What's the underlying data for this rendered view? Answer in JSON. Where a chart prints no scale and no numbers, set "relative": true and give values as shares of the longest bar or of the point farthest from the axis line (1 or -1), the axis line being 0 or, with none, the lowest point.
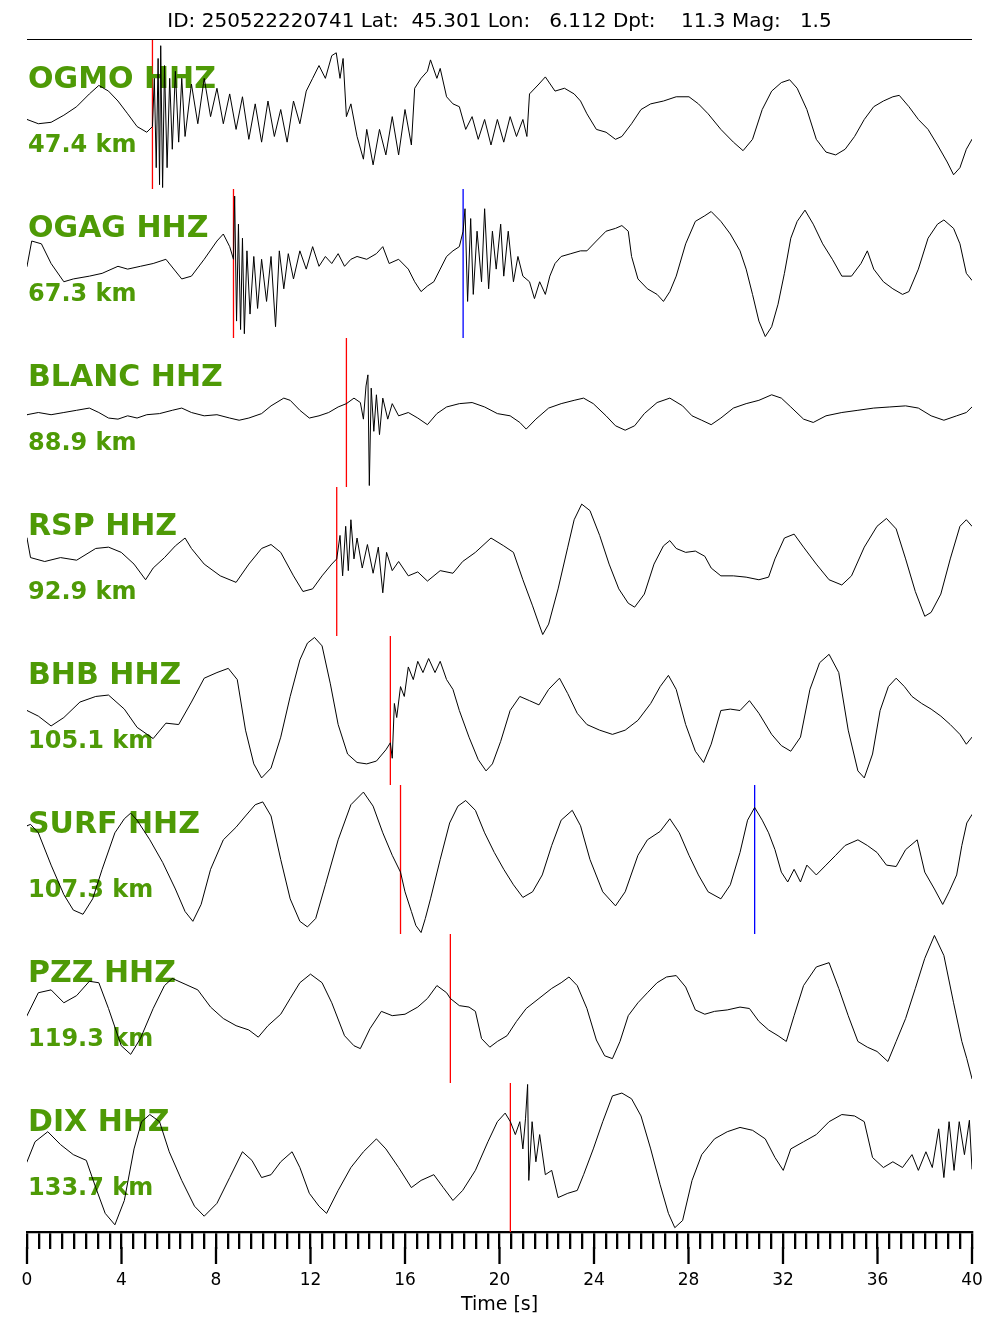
{
  "chart_data": [
    {
      "type": "line",
      "title": "ID: 250522220741 Lat:  45.301 Lon:   6.112 Dpt:    11.3 Mag:   1.5",
      "annotations": [
        "OGMO HHZ",
        "47.4 km"
      ],
      "relative": true,
      "marker": "none",
      "tick_labels": false,
      "xlim": [
        0,
        40
      ],
      "color": "#000000",
      "ref_lines": [
        {
          "axis": "x",
          "value": 5.31,
          "color": "#ff0000"
        }
      ],
      "x": [
        0,
        0.48,
        1.02,
        1.56,
        2.1,
        2.64,
        3.04,
        3.45,
        3.85,
        4.26,
        4.66,
        5.07,
        5.31,
        5.39,
        5.47,
        5.55,
        5.61,
        5.66,
        5.74,
        5.82,
        5.93,
        6.04,
        6.15,
        6.28,
        6.42,
        6.55,
        6.69,
        6.96,
        7.23,
        7.5,
        7.77,
        8.04,
        8.31,
        8.58,
        8.85,
        9.12,
        9.39,
        9.66,
        9.93,
        10.2,
        10.47,
        10.74,
        11.01,
        11.28,
        11.55,
        11.82,
        12.09,
        12.36,
        12.63,
        12.9,
        13.09,
        13.25,
        13.38,
        13.52,
        13.71,
        13.97,
        14.24,
        14.38,
        14.65,
        14.92,
        15.19,
        15.46,
        15.73,
        16,
        16.27,
        16.41,
        16.68,
        16.95,
        17.08,
        17.35,
        17.49,
        17.76,
        18.03,
        18.3,
        18.57,
        18.84,
        19.1,
        19.37,
        19.64,
        19.91,
        20.18,
        20.45,
        20.72,
        20.99,
        21.16,
        21.27,
        21.67,
        21.94,
        22.35,
        22.75,
        23.16,
        23.43,
        23.7,
        24.1,
        24.51,
        24.91,
        25.18,
        25.59,
        25.99,
        26.4,
        26.94,
        27.48,
        28.02,
        28.42,
        28.83,
        29.37,
        29.9,
        30.31,
        30.71,
        31.12,
        31.52,
        31.93,
        32.28,
        32.6,
        33.01,
        33.41,
        33.82,
        34.23,
        34.63,
        35.03,
        35.44,
        35.84,
        36.25,
        36.65,
        36.92,
        37.33,
        37.73,
        38.14,
        38.54,
        38.95,
        39.22,
        39.49,
        39.76,
        40
      ],
      "values": [
        0.48,
        0.45,
        0.46,
        0.51,
        0.57,
        0.66,
        0.72,
        0.68,
        0.61,
        0.52,
        0.43,
        0.39,
        0.43,
        0.77,
        0.14,
        0.91,
        0.02,
        1,
        0,
        0.86,
        0.14,
        0.77,
        0.27,
        0.82,
        0.32,
        0.77,
        0.36,
        0.73,
        0.45,
        0.77,
        0.5,
        0.7,
        0.45,
        0.66,
        0.41,
        0.64,
        0.34,
        0.59,
        0.32,
        0.61,
        0.36,
        0.55,
        0.32,
        0.61,
        0.45,
        0.68,
        0.77,
        0.86,
        0.77,
        0.93,
        0.95,
        0.77,
        0.91,
        0.5,
        0.59,
        0.36,
        0.2,
        0.41,
        0.16,
        0.41,
        0.23,
        0.5,
        0.23,
        0.55,
        0.3,
        0.7,
        0.77,
        0.82,
        0.9,
        0.77,
        0.84,
        0.64,
        0.59,
        0.57,
        0.41,
        0.5,
        0.34,
        0.48,
        0.3,
        0.48,
        0.32,
        0.5,
        0.36,
        0.48,
        0.36,
        0.66,
        0.73,
        0.78,
        0.68,
        0.7,
        0.66,
        0.61,
        0.52,
        0.41,
        0.39,
        0.34,
        0.36,
        0.45,
        0.55,
        0.59,
        0.61,
        0.64,
        0.64,
        0.59,
        0.52,
        0.41,
        0.32,
        0.26,
        0.34,
        0.55,
        0.68,
        0.74,
        0.76,
        0.7,
        0.55,
        0.34,
        0.25,
        0.23,
        0.27,
        0.36,
        0.48,
        0.57,
        0.61,
        0.64,
        0.65,
        0.57,
        0.48,
        0.41,
        0.3,
        0.18,
        0.09,
        0.14,
        0.27,
        0.34
      ]
    },
    {
      "type": "line",
      "annotations": [
        "OGAG HHZ",
        "67.3 km"
      ],
      "relative": true,
      "marker": "none",
      "tick_labels": false,
      "xlim": [
        0,
        40
      ],
      "color": "#000000",
      "ref_lines": [
        {
          "axis": "x",
          "value": 8.74,
          "color": "#ff0000"
        },
        {
          "axis": "x",
          "value": 18.46,
          "color": "#0000ff"
        }
      ],
      "x": [
        0,
        0.2,
        0.61,
        1.02,
        1.56,
        1.96,
        2.64,
        3.18,
        3.85,
        4.26,
        4.8,
        5.34,
        5.88,
        6.55,
        6.96,
        7.5,
        8.04,
        8.31,
        8.58,
        8.74,
        8.79,
        8.87,
        8.95,
        9.04,
        9.12,
        9.2,
        9.31,
        9.44,
        9.6,
        9.76,
        9.93,
        10.14,
        10.33,
        10.52,
        10.68,
        10.87,
        11.06,
        11.28,
        11.55,
        11.82,
        12.09,
        12.36,
        12.63,
        12.9,
        13.17,
        13.44,
        13.71,
        13.97,
        14.38,
        14.79,
        15.06,
        15.33,
        15.73,
        16.14,
        16.41,
        16.68,
        16.95,
        17.22,
        17.49,
        17.76,
        18.03,
        18.3,
        18.46,
        18.54,
        18.65,
        18.78,
        18.89,
        19.05,
        19.24,
        19.37,
        19.54,
        19.7,
        19.86,
        20.05,
        20.18,
        20.37,
        20.59,
        20.78,
        20.99,
        21.27,
        21.48,
        21.7,
        21.94,
        22.13,
        22.35,
        22.61,
        23.02,
        23.43,
        23.7,
        24.1,
        24.51,
        24.91,
        25.18,
        25.45,
        25.59,
        25.86,
        26.26,
        26.67,
        26.94,
        27.21,
        27.48,
        27.88,
        28.29,
        28.69,
        28.96,
        29.37,
        29.77,
        30.18,
        30.44,
        30.71,
        30.98,
        31.25,
        31.52,
        31.79,
        32.06,
        32.33,
        32.6,
        32.93,
        33.28,
        33.68,
        34.09,
        34.49,
        34.9,
        35.3,
        35.57,
        35.84,
        36.25,
        36.65,
        37.06,
        37.33,
        37.73,
        38.14,
        38.54,
        38.81,
        39.22,
        39.49,
        39.76,
        40
      ],
      "values": [
        0.5,
        0.68,
        0.66,
        0.52,
        0.39,
        0.41,
        0.43,
        0.45,
        0.5,
        0.48,
        0.5,
        0.52,
        0.55,
        0.41,
        0.43,
        0.55,
        0.68,
        0.73,
        0.64,
        0.55,
        1,
        0.11,
        0.8,
        0.05,
        0.7,
        0.02,
        0.61,
        0.16,
        0.57,
        0.2,
        0.55,
        0.25,
        0.57,
        0.07,
        0.61,
        0.34,
        0.59,
        0.41,
        0.61,
        0.48,
        0.64,
        0.5,
        0.57,
        0.52,
        0.59,
        0.5,
        0.55,
        0.57,
        0.55,
        0.59,
        0.64,
        0.52,
        0.55,
        0.48,
        0.39,
        0.32,
        0.36,
        0.39,
        0.48,
        0.57,
        0.61,
        0.64,
        0.75,
        0.91,
        0.25,
        0.84,
        0.3,
        0.75,
        0.39,
        0.91,
        0.34,
        0.75,
        0.48,
        0.8,
        0.43,
        0.75,
        0.39,
        0.57,
        0.43,
        0.39,
        0.27,
        0.39,
        0.3,
        0.43,
        0.52,
        0.57,
        0.59,
        0.61,
        0.61,
        0.68,
        0.75,
        0.77,
        0.79,
        0.75,
        0.57,
        0.41,
        0.34,
        0.3,
        0.25,
        0.32,
        0.43,
        0.66,
        0.82,
        0.86,
        0.89,
        0.82,
        0.73,
        0.61,
        0.48,
        0.3,
        0.11,
        0,
        0.07,
        0.23,
        0.45,
        0.7,
        0.82,
        0.9,
        0.8,
        0.66,
        0.55,
        0.43,
        0.43,
        0.52,
        0.61,
        0.48,
        0.39,
        0.34,
        0.3,
        0.32,
        0.48,
        0.7,
        0.8,
        0.83,
        0.77,
        0.66,
        0.45,
        0.4
      ]
    },
    {
      "type": "line",
      "annotations": [
        "BLANC HHZ",
        "88.9 km"
      ],
      "relative": true,
      "marker": "none",
      "tick_labels": false,
      "xlim": [
        0,
        40
      ],
      "color": "#000000",
      "ref_lines": [
        {
          "axis": "x",
          "value": 13.52,
          "color": "#ff0000"
        }
      ],
      "x": [
        0,
        0.48,
        1.02,
        1.56,
        2.1,
        2.64,
        3.04,
        3.45,
        3.85,
        4.26,
        4.66,
        5.07,
        5.61,
        6.15,
        6.55,
        6.96,
        7.5,
        8.04,
        8.58,
        8.98,
        9.39,
        9.93,
        10.33,
        10.87,
        11.14,
        11.55,
        11.95,
        12.36,
        12.77,
        13.17,
        13.52,
        13.84,
        14.11,
        14.24,
        14.35,
        14.43,
        14.49,
        14.57,
        14.68,
        14.79,
        14.92,
        15.06,
        15.27,
        15.46,
        15.73,
        16.14,
        16.54,
        16.95,
        17.35,
        17.76,
        18.3,
        18.84,
        19.37,
        19.91,
        20.45,
        20.86,
        21.13,
        21.54,
        22.08,
        22.61,
        23.16,
        23.56,
        23.97,
        24.51,
        24.91,
        25.32,
        25.72,
        26.13,
        26.67,
        27.21,
        27.75,
        28.15,
        28.56,
        28.96,
        29.37,
        29.9,
        30.44,
        30.98,
        31.52,
        31.93,
        32.33,
        32.87,
        33.28,
        33.82,
        34.49,
        35.17,
        35.84,
        36.52,
        37.19,
        37.73,
        38.27,
        38.81,
        39.35,
        39.76,
        40
      ],
      "values": [
        0.64,
        0.66,
        0.64,
        0.66,
        0.68,
        0.7,
        0.66,
        0.61,
        0.6,
        0.63,
        0.61,
        0.64,
        0.65,
        0.68,
        0.7,
        0.66,
        0.63,
        0.64,
        0.61,
        0.59,
        0.61,
        0.65,
        0.72,
        0.79,
        0.77,
        0.68,
        0.61,
        0.63,
        0.66,
        0.71,
        0.74,
        0.79,
        0.75,
        0.6,
        0.9,
        1,
        0,
        0.88,
        0.49,
        0.82,
        0.46,
        0.79,
        0.6,
        0.74,
        0.63,
        0.66,
        0.61,
        0.55,
        0.65,
        0.71,
        0.74,
        0.75,
        0.71,
        0.65,
        0.63,
        0.57,
        0.51,
        0.6,
        0.7,
        0.74,
        0.77,
        0.79,
        0.74,
        0.63,
        0.54,
        0.5,
        0.54,
        0.65,
        0.75,
        0.79,
        0.72,
        0.63,
        0.59,
        0.55,
        0.61,
        0.7,
        0.74,
        0.77,
        0.82,
        0.79,
        0.71,
        0.6,
        0.57,
        0.63,
        0.66,
        0.68,
        0.7,
        0.71,
        0.72,
        0.7,
        0.63,
        0.59,
        0.63,
        0.66,
        0.71
      ]
    },
    {
      "type": "line",
      "annotations": [
        "RSP HHZ",
        "92.9 km"
      ],
      "relative": true,
      "marker": "none",
      "tick_labels": false,
      "xlim": [
        0,
        40
      ],
      "color": "#000000",
      "ref_lines": [
        {
          "axis": "x",
          "value": 13.11,
          "color": "#ff0000"
        }
      ],
      "x": [
        0,
        0.15,
        0.75,
        1.42,
        2.1,
        2.91,
        3.45,
        3.99,
        4.53,
        5.02,
        5.34,
        5.82,
        6.28,
        6.69,
        6.96,
        7.5,
        8.18,
        8.85,
        9.39,
        9.93,
        10.33,
        10.74,
        11.28,
        11.68,
        12.09,
        12.49,
        12.9,
        13.11,
        13.25,
        13.36,
        13.49,
        13.6,
        13.71,
        13.84,
        13.97,
        14.19,
        14.41,
        14.65,
        14.87,
        15.06,
        15.22,
        15.46,
        15.73,
        16.14,
        16.54,
        16.95,
        17.49,
        18.03,
        18.44,
        18.98,
        19.64,
        20.18,
        20.59,
        20.99,
        21.4,
        21.67,
        21.83,
        22.08,
        22.48,
        22.89,
        23.16,
        23.48,
        23.83,
        24.24,
        24.64,
        25.05,
        25.45,
        25.72,
        26.13,
        26.54,
        26.94,
        27.21,
        27.48,
        27.88,
        28.29,
        28.69,
        28.96,
        29.37,
        29.9,
        30.44,
        30.98,
        31.39,
        31.66,
        32.06,
        32.47,
        32.87,
        33.41,
        33.95,
        34.49,
        34.9,
        35.44,
        35.98,
        36.38,
        36.79,
        37.19,
        37.6,
        38,
        38.27,
        38.68,
        39.08,
        39.49,
        39.76,
        40
      ],
      "values": [
        0.74,
        0.59,
        0.56,
        0.59,
        0.57,
        0.66,
        0.67,
        0.63,
        0.54,
        0.42,
        0.51,
        0.59,
        0.68,
        0.74,
        0.66,
        0.54,
        0.45,
        0.4,
        0.54,
        0.66,
        0.69,
        0.63,
        0.45,
        0.33,
        0.35,
        0.45,
        0.54,
        0.58,
        0.76,
        0.45,
        0.83,
        0.49,
        0.88,
        0.58,
        0.74,
        0.51,
        0.69,
        0.47,
        0.67,
        0.32,
        0.63,
        0.49,
        0.56,
        0.45,
        0.48,
        0.41,
        0.49,
        0.47,
        0.56,
        0.63,
        0.74,
        0.68,
        0.63,
        0.42,
        0.22,
        0.08,
        0,
        0.08,
        0.35,
        0.67,
        0.88,
        1,
        0.95,
        0.76,
        0.54,
        0.35,
        0.24,
        0.21,
        0.31,
        0.54,
        0.68,
        0.72,
        0.66,
        0.63,
        0.64,
        0.6,
        0.51,
        0.45,
        0.45,
        0.44,
        0.42,
        0.44,
        0.58,
        0.74,
        0.77,
        0.67,
        0.54,
        0.42,
        0.38,
        0.45,
        0.67,
        0.83,
        0.89,
        0.81,
        0.58,
        0.33,
        0.14,
        0.17,
        0.31,
        0.58,
        0.83,
        0.88,
        0.83
      ]
    },
    {
      "type": "line",
      "annotations": [
        "BHB HHZ",
        "105.1 km"
      ],
      "relative": true,
      "marker": "none",
      "tick_labels": false,
      "xlim": [
        0,
        40
      ],
      "color": "#000000",
      "ref_lines": [
        {
          "axis": "x",
          "value": 15.38,
          "color": "#ff0000"
        }
      ],
      "x": [
        0,
        0.48,
        1.02,
        1.56,
        2.24,
        2.91,
        3.45,
        4.12,
        4.66,
        5.34,
        5.88,
        6.42,
        6.96,
        7.5,
        8.04,
        8.52,
        8.9,
        9.25,
        9.6,
        9.93,
        10.33,
        10.74,
        11.14,
        11.55,
        11.87,
        12.17,
        12.49,
        12.84,
        13.17,
        13.57,
        13.97,
        14.38,
        14.79,
        15.19,
        15.38,
        15.46,
        15.55,
        15.65,
        15.81,
        15.97,
        16.14,
        16.35,
        16.54,
        16.76,
        17,
        17.27,
        17.49,
        17.76,
        18.03,
        18.3,
        18.71,
        19.1,
        19.43,
        19.7,
        20.05,
        20.45,
        20.86,
        21.27,
        21.67,
        22.08,
        22.54,
        22.89,
        23.29,
        23.7,
        24.24,
        24.78,
        25.32,
        25.86,
        26.4,
        26.8,
        27.15,
        27.48,
        27.88,
        28.29,
        28.64,
        28.96,
        29.37,
        29.77,
        30.18,
        30.58,
        30.98,
        31.52,
        31.93,
        32.33,
        32.74,
        33.14,
        33.55,
        33.95,
        34.36,
        34.76,
        35.17,
        35.44,
        35.79,
        36.11,
        36.46,
        36.79,
        37.14,
        37.46,
        37.87,
        38.27,
        38.68,
        39.08,
        39.49,
        39.76,
        40
      ],
      "values": [
        0.48,
        0.44,
        0.37,
        0.43,
        0.54,
        0.58,
        0.59,
        0.49,
        0.36,
        0.28,
        0.39,
        0.38,
        0.54,
        0.71,
        0.75,
        0.78,
        0.7,
        0.34,
        0.1,
        0,
        0.07,
        0.29,
        0.58,
        0.84,
        0.96,
        1,
        0.94,
        0.67,
        0.38,
        0.17,
        0.11,
        0.1,
        0.12,
        0.2,
        0.25,
        0.14,
        0.53,
        0.43,
        0.65,
        0.58,
        0.79,
        0.7,
        0.83,
        0.75,
        0.85,
        0.75,
        0.83,
        0.7,
        0.63,
        0.48,
        0.29,
        0.13,
        0.05,
        0.1,
        0.26,
        0.48,
        0.58,
        0.55,
        0.52,
        0.63,
        0.71,
        0.6,
        0.46,
        0.38,
        0.34,
        0.31,
        0.34,
        0.41,
        0.53,
        0.65,
        0.73,
        0.63,
        0.38,
        0.19,
        0.11,
        0.24,
        0.48,
        0.49,
        0.48,
        0.55,
        0.46,
        0.31,
        0.23,
        0.19,
        0.29,
        0.63,
        0.82,
        0.88,
        0.75,
        0.34,
        0.05,
        0,
        0.17,
        0.48,
        0.65,
        0.71,
        0.65,
        0.58,
        0.53,
        0.49,
        0.44,
        0.38,
        0.31,
        0.24,
        0.29
      ]
    },
    {
      "type": "line",
      "annotations": [
        "SURF HHZ",
        "107.3 km"
      ],
      "relative": true,
      "marker": "none",
      "tick_labels": false,
      "xlim": [
        0,
        40
      ],
      "color": "#000000",
      "ref_lines": [
        {
          "axis": "x",
          "value": 15.81,
          "color": "#ff0000"
        },
        {
          "axis": "x",
          "value": 30.8,
          "color": "#0000ff"
        }
      ],
      "x": [
        0,
        0.15,
        0.48,
        1.02,
        1.56,
        1.96,
        2.37,
        2.78,
        3.18,
        3.72,
        4.12,
        4.39,
        4.66,
        5.2,
        5.74,
        6.28,
        6.69,
        7.02,
        7.37,
        7.77,
        8.31,
        8.85,
        9.25,
        9.66,
        9.98,
        10.33,
        10.74,
        11.14,
        11.55,
        11.87,
        12.22,
        12.63,
        13.17,
        13.71,
        14.24,
        14.65,
        15.06,
        15.46,
        15.81,
        16,
        16.27,
        16.46,
        16.68,
        16.86,
        17.08,
        17.49,
        17.89,
        18.24,
        18.57,
        18.98,
        19.37,
        19.78,
        20.18,
        20.59,
        20.99,
        21.4,
        21.81,
        22.21,
        22.61,
        23.08,
        23.43,
        23.83,
        24.37,
        24.91,
        25.32,
        25.86,
        26.26,
        26.8,
        27.21,
        27.61,
        28.02,
        28.42,
        28.83,
        29.37,
        29.77,
        30.18,
        30.5,
        30.8,
        31.12,
        31.39,
        31.66,
        31.93,
        32.2,
        32.47,
        32.74,
        33.01,
        33.41,
        33.82,
        34.23,
        34.63,
        35.17,
        35.57,
        35.98,
        36.38,
        36.79,
        37.19,
        37.68,
        38,
        38.41,
        38.76,
        39.03,
        39.35,
        39.57,
        39.78,
        40
      ],
      "values": [
        0.76,
        0.77,
        0.71,
        0.48,
        0.27,
        0.16,
        0.13,
        0.24,
        0.45,
        0.71,
        0.81,
        0.85,
        0.8,
        0.66,
        0.5,
        0.31,
        0.15,
        0.08,
        0.2,
        0.45,
        0.66,
        0.75,
        0.83,
        0.91,
        0.93,
        0.83,
        0.52,
        0.24,
        0.08,
        0.04,
        0.1,
        0.34,
        0.66,
        0.91,
        1,
        0.9,
        0.71,
        0.55,
        0.43,
        0.29,
        0.15,
        0.05,
        0,
        0.1,
        0.24,
        0.52,
        0.78,
        0.9,
        0.94,
        0.87,
        0.71,
        0.57,
        0.45,
        0.34,
        0.25,
        0.29,
        0.41,
        0.62,
        0.8,
        0.87,
        0.76,
        0.52,
        0.29,
        0.19,
        0.29,
        0.55,
        0.66,
        0.72,
        0.81,
        0.71,
        0.55,
        0.41,
        0.29,
        0.24,
        0.34,
        0.57,
        0.8,
        0.89,
        0.8,
        0.71,
        0.59,
        0.43,
        0.36,
        0.45,
        0.36,
        0.48,
        0.41,
        0.48,
        0.55,
        0.62,
        0.66,
        0.62,
        0.57,
        0.48,
        0.47,
        0.59,
        0.66,
        0.43,
        0.31,
        0.2,
        0.29,
        0.41,
        0.62,
        0.78,
        0.84
      ]
    },
    {
      "type": "line",
      "annotations": [
        "PZZ HHZ",
        "119.3 km"
      ],
      "relative": true,
      "marker": "none",
      "tick_labels": false,
      "xlim": [
        0,
        40
      ],
      "color": "#000000",
      "ref_lines": [
        {
          "axis": "x",
          "value": 17.92,
          "color": "#ff0000"
        }
      ],
      "x": [
        0,
        0.48,
        1.02,
        1.56,
        2.1,
        2.64,
        3.04,
        3.45,
        3.99,
        4.39,
        4.8,
        5.34,
        5.82,
        6.15,
        6.69,
        7.23,
        7.77,
        8.31,
        8.85,
        9.39,
        9.79,
        10.2,
        10.74,
        11.14,
        11.55,
        12,
        12.49,
        12.9,
        13.44,
        13.84,
        14.11,
        14.52,
        15,
        15.46,
        16,
        16.54,
        16.95,
        17.35,
        17.76,
        17.92,
        18.3,
        18.71,
        18.98,
        19.24,
        19.59,
        19.91,
        20.32,
        20.72,
        21.13,
        21.67,
        22.21,
        22.61,
        22.94,
        23.29,
        23.7,
        24.1,
        24.45,
        24.78,
        25.1,
        25.45,
        25.86,
        26.26,
        26.67,
        27.07,
        27.48,
        27.88,
        28.29,
        28.69,
        29.1,
        29.64,
        30.18,
        30.58,
        30.98,
        31.39,
        31.79,
        32.14,
        32.47,
        32.87,
        33.41,
        33.95,
        34.36,
        34.76,
        35.17,
        35.57,
        35.98,
        36.44,
        36.79,
        37.19,
        37.6,
        38,
        38.41,
        38.81,
        39.22,
        39.57,
        39.78,
        40
      ],
      "values": [
        0.44,
        0.6,
        0.62,
        0.53,
        0.58,
        0.68,
        0.67,
        0.49,
        0.23,
        0.17,
        0.28,
        0.49,
        0.65,
        0.7,
        0.66,
        0.62,
        0.5,
        0.42,
        0.37,
        0.34,
        0.29,
        0.37,
        0.45,
        0.56,
        0.67,
        0.73,
        0.67,
        0.53,
        0.3,
        0.23,
        0.21,
        0.35,
        0.47,
        0.44,
        0.45,
        0.5,
        0.56,
        0.65,
        0.6,
        0.56,
        0.51,
        0.5,
        0.47,
        0.28,
        0.22,
        0.26,
        0.3,
        0.4,
        0.49,
        0.56,
        0.63,
        0.67,
        0.71,
        0.65,
        0.49,
        0.27,
        0.16,
        0.14,
        0.26,
        0.44,
        0.53,
        0.6,
        0.67,
        0.71,
        0.72,
        0.64,
        0.48,
        0.45,
        0.47,
        0.48,
        0.5,
        0.49,
        0.4,
        0.34,
        0.3,
        0.26,
        0.44,
        0.65,
        0.78,
        0.81,
        0.63,
        0.44,
        0.26,
        0.22,
        0.19,
        0.12,
        0.26,
        0.42,
        0.63,
        0.84,
        1,
        0.86,
        0.53,
        0.26,
        0.14,
        0
      ]
    },
    {
      "type": "line",
      "annotations": [
        "DIX HHZ",
        "133.7 km"
      ],
      "xlabel": "Time [s]",
      "relative": true,
      "marker": "none",
      "tick_labels": "x",
      "xlim": [
        0,
        40
      ],
      "color": "#000000",
      "xticks": [
        0,
        {
          "value": 0.5,
          "label": null
        },
        {
          "value": 1,
          "label": null
        },
        {
          "value": 1.5,
          "label": null
        },
        {
          "value": 2,
          "label": null
        },
        {
          "value": 2.5,
          "label": null
        },
        {
          "value": 3,
          "label": null
        },
        {
          "value": 3.5,
          "label": null
        },
        4,
        {
          "value": 4.5,
          "label": null
        },
        {
          "value": 5,
          "label": null
        },
        {
          "value": 5.5,
          "label": null
        },
        {
          "value": 6,
          "label": null
        },
        {
          "value": 6.5,
          "label": null
        },
        {
          "value": 7,
          "label": null
        },
        {
          "value": 7.5,
          "label": null
        },
        8,
        {
          "value": 8.5,
          "label": null
        },
        {
          "value": 9,
          "label": null
        },
        {
          "value": 9.5,
          "label": null
        },
        {
          "value": 10,
          "label": null
        },
        {
          "value": 10.5,
          "label": null
        },
        {
          "value": 11,
          "label": null
        },
        {
          "value": 11.5,
          "label": null
        },
        12,
        {
          "value": 12.5,
          "label": null
        },
        {
          "value": 13,
          "label": null
        },
        {
          "value": 13.5,
          "label": null
        },
        {
          "value": 14,
          "label": null
        },
        {
          "value": 14.5,
          "label": null
        },
        {
          "value": 15,
          "label": null
        },
        {
          "value": 15.5,
          "label": null
        },
        16,
        {
          "value": 16.5,
          "label": null
        },
        {
          "value": 17,
          "label": null
        },
        {
          "value": 17.5,
          "label": null
        },
        {
          "value": 18,
          "label": null
        },
        {
          "value": 18.5,
          "label": null
        },
        {
          "value": 19,
          "label": null
        },
        {
          "value": 19.5,
          "label": null
        },
        20,
        {
          "value": 20.5,
          "label": null
        },
        {
          "value": 21,
          "label": null
        },
        {
          "value": 21.5,
          "label": null
        },
        {
          "value": 22,
          "label": null
        },
        {
          "value": 22.5,
          "label": null
        },
        {
          "value": 23,
          "label": null
        },
        {
          "value": 23.5,
          "label": null
        },
        24,
        {
          "value": 24.5,
          "label": null
        },
        {
          "value": 25,
          "label": null
        },
        {
          "value": 25.5,
          "label": null
        },
        {
          "value": 26,
          "label": null
        },
        {
          "value": 26.5,
          "label": null
        },
        {
          "value": 27,
          "label": null
        },
        {
          "value": 27.5,
          "label": null
        },
        28,
        {
          "value": 28.5,
          "label": null
        },
        {
          "value": 29,
          "label": null
        },
        {
          "value": 29.5,
          "label": null
        },
        {
          "value": 30,
          "label": null
        },
        {
          "value": 30.5,
          "label": null
        },
        {
          "value": 31,
          "label": null
        },
        {
          "value": 31.5,
          "label": null
        },
        32,
        {
          "value": 32.5,
          "label": null
        },
        {
          "value": 33,
          "label": null
        },
        {
          "value": 33.5,
          "label": null
        },
        {
          "value": 34,
          "label": null
        },
        {
          "value": 34.5,
          "label": null
        },
        {
          "value": 35,
          "label": null
        },
        {
          "value": 35.5,
          "label": null
        },
        36,
        {
          "value": 36.5,
          "label": null
        },
        {
          "value": 37,
          "label": null
        },
        {
          "value": 37.5,
          "label": null
        },
        {
          "value": 38,
          "label": null
        },
        {
          "value": 38.5,
          "label": null
        },
        {
          "value": 39,
          "label": null
        },
        {
          "value": 39.5,
          "label": null
        },
        40
      ],
      "ref_lines": [
        {
          "axis": "x",
          "value": 20.46,
          "color": "#ff0000"
        }
      ],
      "x": [
        0,
        0.34,
        0.88,
        1.42,
        1.96,
        2.51,
        2.91,
        3.31,
        3.72,
        4.12,
        4.53,
        4.85,
        5.2,
        5.61,
        6.02,
        6.55,
        7.09,
        7.5,
        8.04,
        8.58,
        9.12,
        9.52,
        9.93,
        10.33,
        10.74,
        11.22,
        11.55,
        11.95,
        12.36,
        12.68,
        13.17,
        13.71,
        14.24,
        14.79,
        15.19,
        15.73,
        16.27,
        16.68,
        17.22,
        17.62,
        18.03,
        18.44,
        18.98,
        19.51,
        19.91,
        20.24,
        20.46,
        20.67,
        20.86,
        20.99,
        21.1,
        21.19,
        21.24,
        21.38,
        21.54,
        21.7,
        21.94,
        22.21,
        22.48,
        22.89,
        23.29,
        23.56,
        23.97,
        24.37,
        24.78,
        25.18,
        25.59,
        25.99,
        26.4,
        26.8,
        27.15,
        27.42,
        27.75,
        28.15,
        28.56,
        29.1,
        29.64,
        30.18,
        30.71,
        31.25,
        31.66,
        32.01,
        32.33,
        32.87,
        33.41,
        33.95,
        34.49,
        35.03,
        35.44,
        35.79,
        36.25,
        36.65,
        37.06,
        37.46,
        37.73,
        38.05,
        38.32,
        38.59,
        38.81,
        39.03,
        39.24,
        39.46,
        39.68,
        39.89,
        40
      ],
      "values": [
        0.46,
        0.6,
        0.67,
        0.58,
        0.51,
        0.47,
        0.28,
        0.1,
        0.02,
        0.19,
        0.55,
        0.74,
        0.79,
        0.74,
        0.53,
        0.33,
        0.15,
        0.08,
        0.17,
        0.35,
        0.53,
        0.47,
        0.35,
        0.37,
        0.46,
        0.53,
        0.42,
        0.24,
        0.15,
        0.1,
        0.26,
        0.42,
        0.53,
        0.62,
        0.55,
        0.42,
        0.28,
        0.33,
        0.37,
        0.28,
        0.19,
        0.26,
        0.4,
        0.6,
        0.74,
        0.8,
        0.74,
        0.65,
        0.74,
        0.55,
        0.76,
        1,
        0.33,
        0.74,
        0.46,
        0.65,
        0.37,
        0.4,
        0.21,
        0.24,
        0.26,
        0.37,
        0.55,
        0.74,
        0.92,
        0.94,
        0.9,
        0.78,
        0.55,
        0.3,
        0.1,
        0,
        0.05,
        0.33,
        0.51,
        0.62,
        0.67,
        0.7,
        0.68,
        0.62,
        0.49,
        0.4,
        0.55,
        0.6,
        0.65,
        0.74,
        0.79,
        0.78,
        0.74,
        0.49,
        0.42,
        0.46,
        0.42,
        0.51,
        0.4,
        0.53,
        0.42,
        0.69,
        0.35,
        0.74,
        0.4,
        0.74,
        0.51,
        0.75,
        0.41
      ]
    }
  ]
}
